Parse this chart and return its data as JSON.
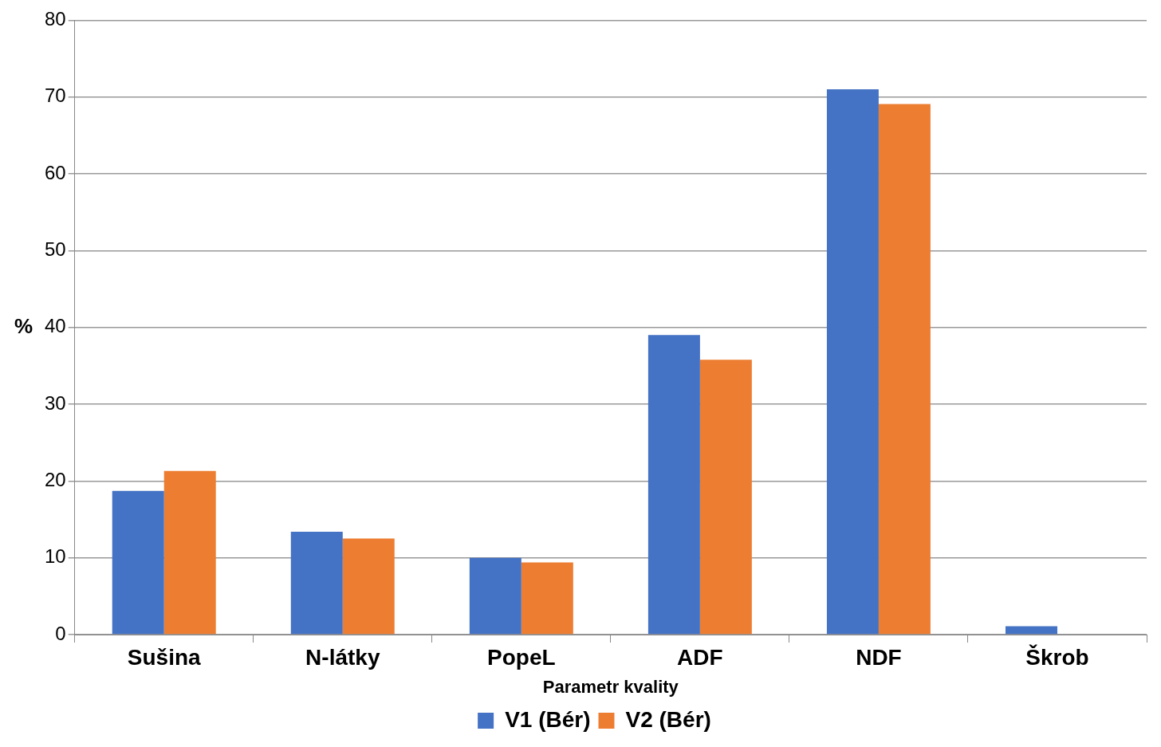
{
  "chart_data": {
    "type": "bar",
    "xlabel": "Parametr kvality",
    "ylabel": "%",
    "categories": [
      "Sušina",
      "N-látky",
      "PopeL",
      "ADF",
      "NDF",
      "Škrob"
    ],
    "series": [
      {
        "name": "V1 (Bér)",
        "color": "#4472c4",
        "values": [
          18.7,
          13.4,
          10,
          39,
          71,
          1.1
        ]
      },
      {
        "name": "V2 (Bér)",
        "color": "#ed7d31",
        "values": [
          21.3,
          12.5,
          9.4,
          35.8,
          69.1,
          null
        ]
      }
    ],
    "ylim": [
      0,
      80
    ],
    "yticks": [
      0,
      10,
      20,
      30,
      40,
      50,
      60,
      70,
      80
    ],
    "grid": "y",
    "legend": "bottom"
  }
}
